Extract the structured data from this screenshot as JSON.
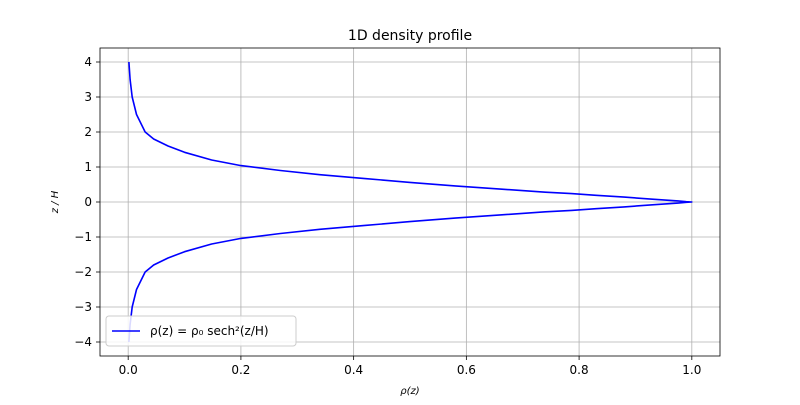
{
  "chart_data": {
    "type": "line",
    "title": "1D density profile",
    "xlabel": "ρ(z)",
    "ylabel": "z / H",
    "xlim": [
      -0.05,
      1.05
    ],
    "ylim": [
      -4.4,
      4.4
    ],
    "xticks": [
      0.0,
      0.2,
      0.4,
      0.6,
      0.8,
      1.0
    ],
    "xtick_labels": [
      "0.0",
      "0.2",
      "0.4",
      "0.6",
      "0.8",
      "1.0"
    ],
    "yticks": [
      -4,
      -3,
      -2,
      -1,
      0,
      1,
      2,
      3,
      4
    ],
    "ytick_labels": [
      "−4",
      "−3",
      "−2",
      "−1",
      "0",
      "1",
      "2",
      "3",
      "4"
    ],
    "grid": true,
    "legend_position": "lower-left",
    "series": [
      {
        "name": "ρ(z) = ρ₀ sech²(z/H)",
        "color": "#0000ff",
        "x": [
          0.0013,
          0.0034,
          0.0071,
          0.0148,
          0.0301,
          0.0452,
          0.0707,
          0.1,
          0.1481,
          0.2,
          0.27,
          0.34,
          0.42,
          0.5,
          0.58,
          0.66,
          0.74,
          0.7864,
          0.83,
          0.88,
          0.93,
          0.9756,
          0.9901,
          1.0,
          0.9901,
          0.9756,
          0.93,
          0.88,
          0.83,
          0.7864,
          0.74,
          0.66,
          0.58,
          0.5,
          0.42,
          0.34,
          0.27,
          0.2,
          0.1481,
          0.1,
          0.0707,
          0.0452,
          0.0301,
          0.0148,
          0.0071,
          0.0034,
          0.0013
        ],
        "y": [
          4.0,
          3.5,
          3.0,
          2.5,
          2.0,
          1.8,
          1.6,
          1.42,
          1.2,
          1.04,
          0.9,
          0.78,
          0.67,
          0.56,
          0.46,
          0.37,
          0.28,
          0.24,
          0.19,
          0.14,
          0.08,
          0.03,
          0.01,
          0.0,
          -0.01,
          -0.03,
          -0.08,
          -0.14,
          -0.19,
          -0.24,
          -0.28,
          -0.37,
          -0.46,
          -0.56,
          -0.67,
          -0.78,
          -0.9,
          -1.04,
          -1.2,
          -1.42,
          -1.6,
          -1.8,
          -2.0,
          -2.5,
          -3.0,
          -3.5,
          -4.0
        ]
      }
    ]
  }
}
